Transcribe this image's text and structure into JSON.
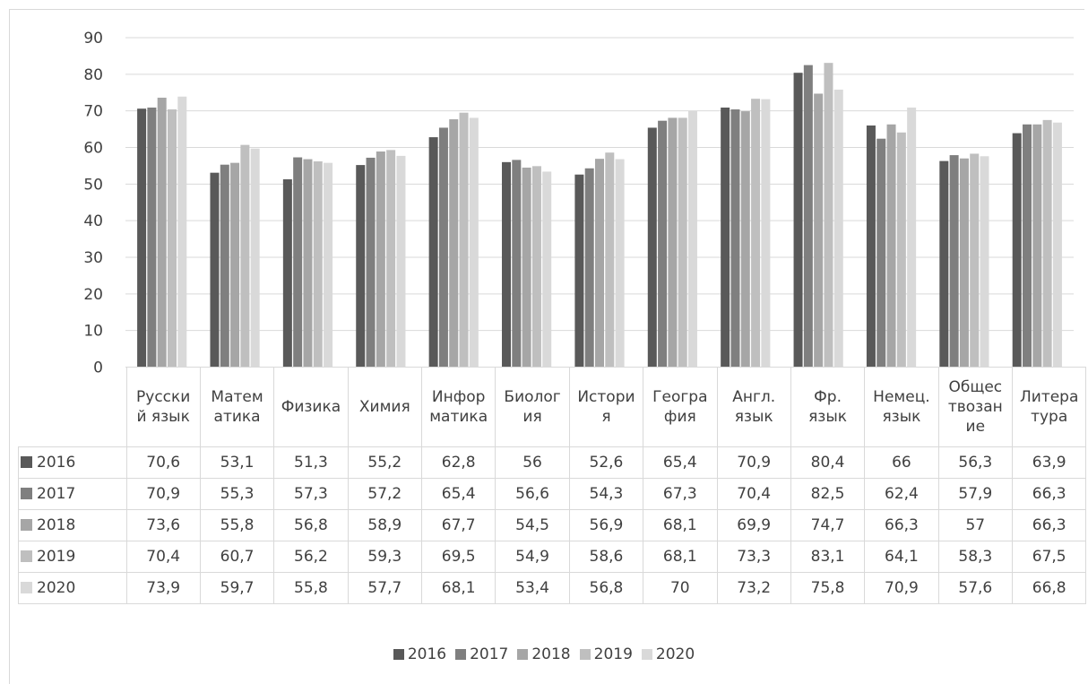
{
  "chart_data": {
    "type": "bar",
    "categories": [
      "Русский язык",
      "Математика",
      "Физика",
      "Химия",
      "Информатика",
      "Биология",
      "История",
      "География",
      "Англ. язык",
      "Фр. язык",
      "Немец. язык",
      "Обществознание",
      "Литература"
    ],
    "category_labels": [
      [
        "Русски",
        "й язык"
      ],
      [
        "Матем",
        "атика"
      ],
      [
        "Физика"
      ],
      [
        "Химия"
      ],
      [
        "Инфор",
        "матика"
      ],
      [
        "Биолог",
        "ия"
      ],
      [
        "Истори",
        "я"
      ],
      [
        "Геогра",
        "фия"
      ],
      [
        "Англ.",
        "язык"
      ],
      [
        "Фр.",
        "язык"
      ],
      [
        "Немец.",
        "язык"
      ],
      [
        "Общес",
        "твозан",
        "ие"
      ],
      [
        "Литера",
        "тура"
      ]
    ],
    "series": [
      {
        "name": "2016",
        "color": "#595959",
        "values": [
          70.6,
          53.1,
          51.3,
          55.2,
          62.8,
          56,
          52.6,
          65.4,
          70.9,
          80.4,
          66,
          56.3,
          63.9
        ],
        "labels": [
          "70,6",
          "53,1",
          "51,3",
          "55,2",
          "62,8",
          "56",
          "52,6",
          "65,4",
          "70,9",
          "80,4",
          "66",
          "56,3",
          "63,9"
        ]
      },
      {
        "name": "2017",
        "color": "#7f7f7f",
        "values": [
          70.9,
          55.3,
          57.3,
          57.2,
          65.4,
          56.6,
          54.3,
          67.3,
          70.4,
          82.5,
          62.4,
          57.9,
          66.3
        ],
        "labels": [
          "70,9",
          "55,3",
          "57,3",
          "57,2",
          "65,4",
          "56,6",
          "54,3",
          "67,3",
          "70,4",
          "82,5",
          "62,4",
          "57,9",
          "66,3"
        ]
      },
      {
        "name": "2018",
        "color": "#a6a6a6",
        "values": [
          73.6,
          55.8,
          56.8,
          58.9,
          67.7,
          54.5,
          56.9,
          68.1,
          69.9,
          74.7,
          66.3,
          57,
          66.3
        ],
        "labels": [
          "73,6",
          "55,8",
          "56,8",
          "58,9",
          "67,7",
          "54,5",
          "56,9",
          "68,1",
          "69,9",
          "74,7",
          "66,3",
          "57",
          "66,3"
        ]
      },
      {
        "name": "2019",
        "color": "#bfbfbf",
        "values": [
          70.4,
          60.7,
          56.2,
          59.3,
          69.5,
          54.9,
          58.6,
          68.1,
          73.3,
          83.1,
          64.1,
          58.3,
          67.5
        ],
        "labels": [
          "70,4",
          "60,7",
          "56,2",
          "59,3",
          "69,5",
          "54,9",
          "58,6",
          "68,1",
          "73,3",
          "83,1",
          "64,1",
          "58,3",
          "67,5"
        ]
      },
      {
        "name": "2020",
        "color": "#d9d9d9",
        "values": [
          73.9,
          59.7,
          55.8,
          57.7,
          68.1,
          53.4,
          56.8,
          70,
          73.2,
          75.8,
          70.9,
          57.6,
          66.8
        ],
        "labels": [
          "73,9",
          "59,7",
          "55,8",
          "57,7",
          "68,1",
          "53,4",
          "56,8",
          "70",
          "73,2",
          "75,8",
          "70,9",
          "57,6",
          "66,8"
        ]
      }
    ],
    "ylim": [
      0,
      90
    ],
    "yticks": [
      0,
      10,
      20,
      30,
      40,
      50,
      60,
      70,
      80,
      90
    ],
    "grid": true,
    "legend_position": "bottom",
    "data_table": true
  }
}
